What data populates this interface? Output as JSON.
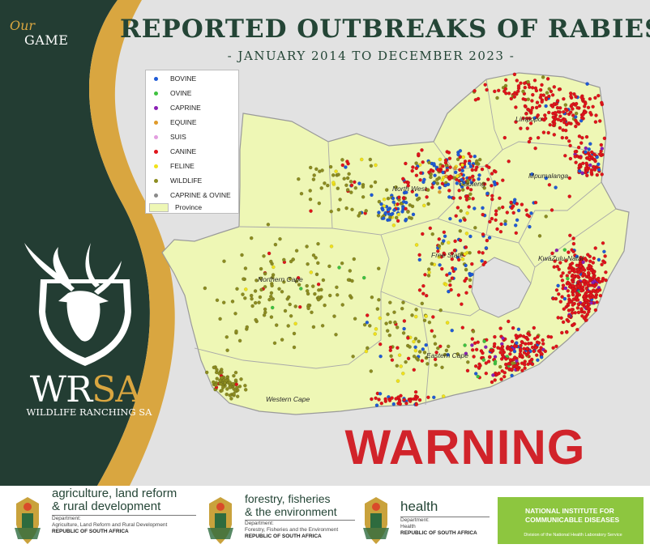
{
  "brand": {
    "our": "Our",
    "game": "GAME",
    "wrsa_wr": "WR",
    "wrsa_sa": "SA",
    "wrsa_sub": "WILDLIFE RANCHING SA"
  },
  "title": "REPORTED OUTBREAKS OF RABIES",
  "subtitle": "- JANUARY 2014 TO DECEMBER 2023 -",
  "legend": {
    "items": [
      {
        "label": "BOVINE",
        "color": "#1f5bd6"
      },
      {
        "label": "OVINE",
        "color": "#3fc23f"
      },
      {
        "label": "CAPRINE",
        "color": "#8a1fb5"
      },
      {
        "label": "EQUINE",
        "color": "#e09a2a"
      },
      {
        "label": "SUIS",
        "color": "#e39ee0"
      },
      {
        "label": "CANINE",
        "color": "#e0141a"
      },
      {
        "label": "FELINE",
        "color": "#f1e21a"
      },
      {
        "label": "WILDLIFE",
        "color": "#8c8c20"
      },
      {
        "label": "CAPRINE & OVINE",
        "color": "#8a8a8a"
      }
    ],
    "province_label": "Province",
    "province_color": "#eef7b5"
  },
  "provinces": [
    "Limpopo",
    "Mpumalanga",
    "North West",
    "Gauteng",
    "Free State",
    "KwaZulu-Natal",
    "Northern Cape",
    "Eastern Cape",
    "Western Cape"
  ],
  "warning": "WARNING",
  "colors": {
    "dark_green": "#244536",
    "gold": "#d9a640",
    "warning_red": "#d1232a",
    "land": "#eef7b5"
  },
  "footer": {
    "agri": {
      "line1": "agriculture, land reform",
      "line2": "& rural development",
      "dept_label": "Department:",
      "dept_name": "Agriculture, Land Reform and Rural Development",
      "country": "REPUBLIC OF SOUTH AFRICA"
    },
    "forestry": {
      "line1": "forestry, fisheries",
      "line2": "& the environment",
      "dept_label": "Department:",
      "dept_name": "Forestry, Fisheries and the Environment",
      "country": "REPUBLIC OF SOUTH AFRICA"
    },
    "health": {
      "line1": "health",
      "dept_label": "Department:",
      "dept_name": "Health",
      "country": "REPUBLIC OF SOUTH AFRICA"
    },
    "nicd": {
      "line1": "NATIONAL INSTITUTE FOR",
      "line2": "COMMUNICABLE DISEASES",
      "line3": "Division of the National Health Laboratory Service"
    }
  }
}
